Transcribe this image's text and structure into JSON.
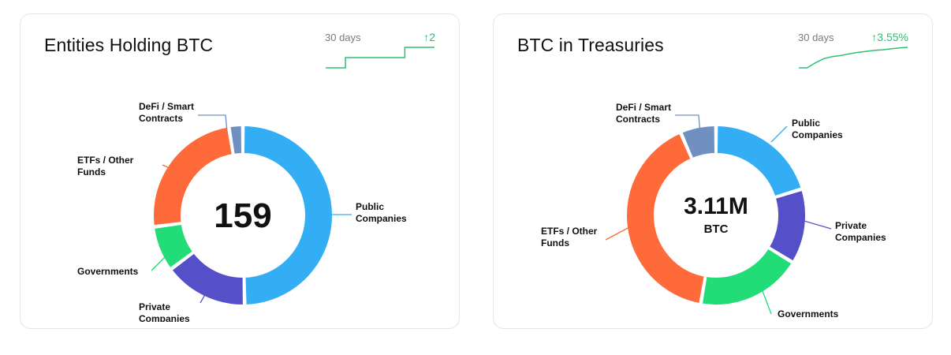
{
  "chart_data": [
    {
      "type": "pie",
      "title": "Entities Holding BTC",
      "center_value": "159",
      "center_unit": "",
      "trend": {
        "period": "30 days",
        "change": "↑2",
        "values": [
          0,
          0,
          1,
          1,
          1,
          1,
          1,
          1,
          2,
          2,
          2,
          2
        ]
      },
      "categories": [
        "Public Companies",
        "Private Companies",
        "Governments",
        "ETFs / Other Funds",
        "DeFi / Smart Contracts"
      ],
      "values": [
        79,
        24,
        13,
        39,
        4
      ],
      "colors": [
        "#33aef5",
        "#5650c8",
        "#22dc78",
        "#ff6a3a",
        "#7090c2"
      ],
      "legend": "callouts"
    },
    {
      "type": "pie",
      "title": "BTC in Treasuries",
      "center_value": "3.11M",
      "center_unit": "BTC",
      "trend": {
        "period": "30 days",
        "change": "↑3.55%",
        "values": [
          0,
          0,
          0.25,
          0.45,
          0.55,
          0.6,
          0.68,
          0.75,
          0.8,
          0.85,
          0.88,
          0.93,
          0.97,
          1
        ]
      },
      "categories": [
        "Public Companies",
        "Private Companies",
        "Governments",
        "ETFs / Other Funds",
        "DeFi / Smart Contracts"
      ],
      "values": [
        0.63,
        0.42,
        0.59,
        1.27,
        0.2
      ],
      "colors": [
        "#33aef5",
        "#5650c8",
        "#22dc78",
        "#ff6a3a",
        "#7090c2"
      ],
      "legend": "callouts"
    }
  ]
}
